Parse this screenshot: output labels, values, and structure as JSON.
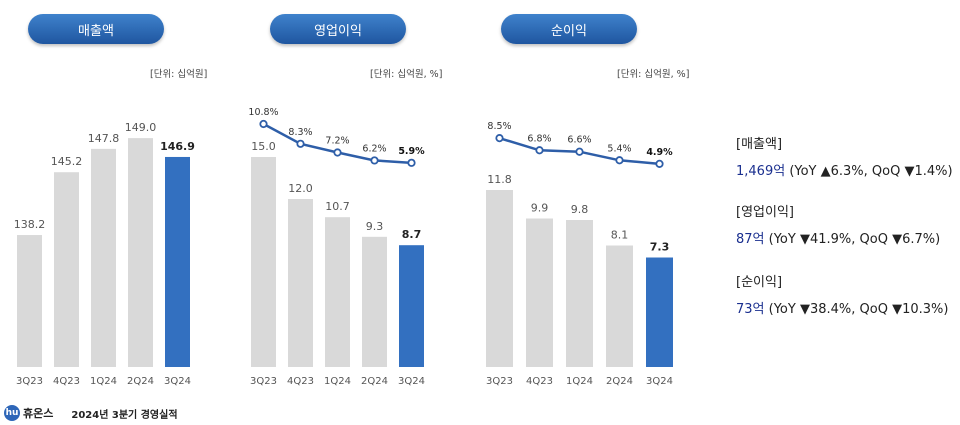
{
  "chart_data": [
    {
      "type": "bar",
      "title": "매출액",
      "unit": "[단위: 십억원]",
      "categories": [
        "3Q23",
        "4Q23",
        "1Q24",
        "2Q24",
        "3Q24"
      ],
      "values": [
        138.2,
        145.2,
        147.8,
        149.0,
        146.9
      ],
      "value_labels": [
        "138.2",
        "145.2",
        "147.8",
        "149.0",
        "146.9"
      ],
      "highlight_index": 4
    },
    {
      "type": "bar",
      "title": "영업이익",
      "unit": "[단위: 십억원, %]",
      "categories": [
        "3Q23",
        "4Q23",
        "1Q24",
        "2Q24",
        "3Q24"
      ],
      "values": [
        15.0,
        12.0,
        10.7,
        9.3,
        8.7
      ],
      "value_labels": [
        "15.0",
        "12.0",
        "10.7",
        "9.3",
        "8.7"
      ],
      "margin": [
        10.8,
        8.3,
        7.2,
        6.2,
        5.9
      ],
      "margin_labels": [
        "10.8%",
        "8.3%",
        "7.2%",
        "6.2%",
        "5.9%"
      ],
      "highlight_index": 4
    },
    {
      "type": "bar",
      "title": "순이익",
      "unit": "[단위: 십억원, %]",
      "categories": [
        "3Q23",
        "4Q23",
        "1Q24",
        "2Q24",
        "3Q24"
      ],
      "values": [
        11.8,
        9.9,
        9.8,
        8.1,
        7.3
      ],
      "value_labels": [
        "11.8",
        "9.9",
        "9.8",
        "8.1",
        "7.3"
      ],
      "margin": [
        8.5,
        6.8,
        6.6,
        5.4,
        4.9
      ],
      "margin_labels": [
        "8.5%",
        "6.8%",
        "6.6%",
        "5.4%",
        "4.9%"
      ],
      "highlight_index": 4
    }
  ],
  "summary": [
    {
      "head": "[매출액]",
      "value": "1,469억",
      "detail": " (YoY ▲6.3%, QoQ ▼1.4%)"
    },
    {
      "head": "[영업이익]",
      "value": "87억",
      "detail": " (YoY ▼41.9%, QoQ ▼6.7%)"
    },
    {
      "head": "[순이익]",
      "value": "73억",
      "detail": " (YoY ▼38.4%,  QoQ ▼10.3%)"
    }
  ],
  "footer": {
    "logo": "hu",
    "brand": "휴온스",
    "title": "2024년 3분기 경영실적"
  },
  "colors": {
    "bar": "#d9d9d9",
    "highlight": "#3370c0",
    "line": "#2e5ea8"
  }
}
